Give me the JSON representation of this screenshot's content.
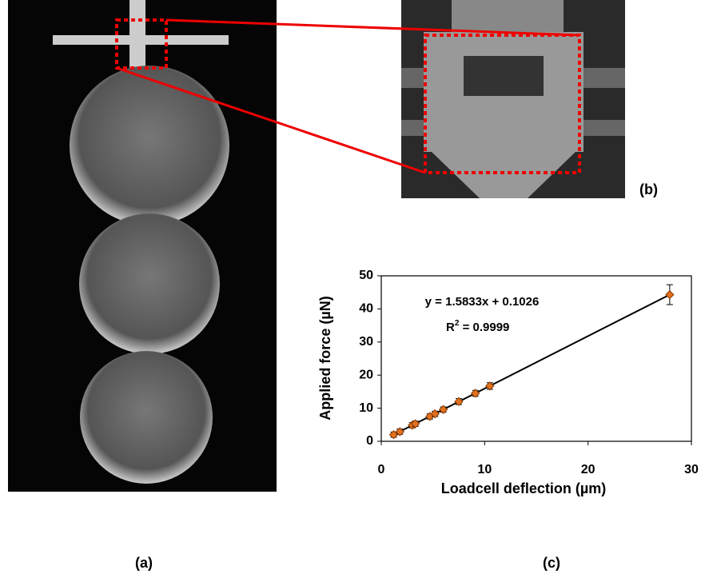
{
  "panels": {
    "a": "(a)",
    "b": "(b)",
    "c": "(c)"
  },
  "chart_data": {
    "type": "scatter",
    "xlabel": "Loadcell deflection (µm)",
    "ylabel": "Applied force (µN)",
    "equation": "y = 1.5833x + 0.1026",
    "r2": {
      "prefix": "R",
      "sup": "2",
      "rest": " = 0.9999"
    },
    "x": [
      1.2,
      1.8,
      3.0,
      3.3,
      4.7,
      5.2,
      6.0,
      7.5,
      9.1,
      10.5,
      27.9
    ],
    "values": [
      2.0,
      2.9,
      4.85,
      5.3,
      7.5,
      8.3,
      9.6,
      12.0,
      14.5,
      16.7,
      44.3
    ],
    "errors": [
      0.8,
      0.8,
      0.8,
      0.8,
      0.8,
      0.8,
      0.8,
      0.9,
      0.9,
      1.0,
      3.0
    ],
    "color": "#e07020",
    "trendline": {
      "x": [
        1.2,
        27.9
      ],
      "y": [
        2.0,
        44.3
      ],
      "color": "#000000"
    },
    "xlim": [
      0,
      30
    ],
    "xticks": [
      0,
      10,
      20,
      30
    ],
    "ylim": [
      0,
      50
    ],
    "yticks": [
      0,
      10,
      20,
      30,
      40,
      50
    ]
  }
}
